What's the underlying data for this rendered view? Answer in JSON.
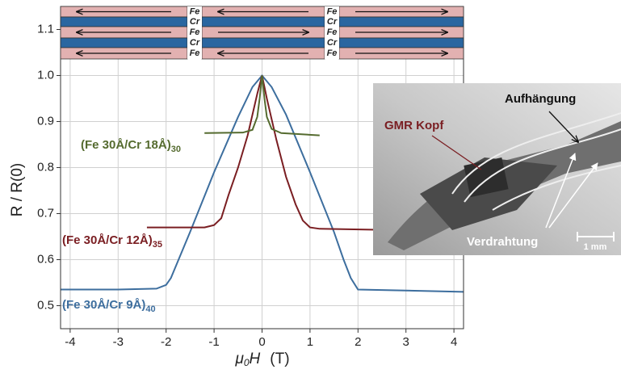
{
  "chart_data": {
    "type": "line",
    "y_label": "R / R(0)",
    "x_label": {
      "symbol": "μ",
      "sub": "0",
      "var": "H",
      "unit": "(T)"
    },
    "xlim": [
      -4.2,
      4.2
    ],
    "xticks": [
      -4,
      -3,
      -2,
      -1,
      0,
      1,
      2,
      3,
      4
    ],
    "ylim": [
      0.45,
      1.15
    ],
    "yticks": [
      0.5,
      0.6,
      0.7,
      0.8,
      0.9,
      {
        "value": 1,
        "label": "1.0"
      },
      1.1
    ],
    "grid": true,
    "series": [
      {
        "name": "(Fe 30Å/Cr 9Å)",
        "subscript": "40",
        "color": "#3d6e9e",
        "x": [
          -4.2,
          -3,
          -2.2,
          -2.0,
          -1.9,
          -1.7,
          -1.5,
          -1.0,
          -0.5,
          -0.2,
          0,
          0.2,
          0.5,
          1.0,
          1.5,
          1.7,
          1.85,
          2.0,
          3,
          4.2
        ],
        "values": [
          0.535,
          0.535,
          0.537,
          0.545,
          0.56,
          0.61,
          0.66,
          0.79,
          0.91,
          0.975,
          1.0,
          0.975,
          0.915,
          0.79,
          0.66,
          0.6,
          0.56,
          0.535,
          0.533,
          0.53
        ]
      },
      {
        "name": "(Fe 30Å/Cr 12Å)",
        "subscript": "35",
        "color": "#7a1e22",
        "x": [
          -2.4,
          -1.2,
          -1.0,
          -0.85,
          -0.7,
          -0.5,
          -0.3,
          -0.1,
          0,
          0.1,
          0.3,
          0.5,
          0.7,
          0.85,
          1.0,
          1.2,
          2.4
        ],
        "values": [
          0.67,
          0.67,
          0.675,
          0.69,
          0.74,
          0.8,
          0.87,
          0.96,
          1.0,
          0.95,
          0.86,
          0.78,
          0.72,
          0.685,
          0.67,
          0.667,
          0.665
        ]
      },
      {
        "name": "(Fe 30Å/Cr 18Å)",
        "subscript": "30",
        "color": "#556b2f",
        "x": [
          -1.2,
          -0.4,
          -0.2,
          -0.1,
          -0.05,
          0,
          0.05,
          0.1,
          0.2,
          0.4,
          1.2
        ],
        "values": [
          0.875,
          0.876,
          0.882,
          0.91,
          0.95,
          1.0,
          0.95,
          0.91,
          0.884,
          0.875,
          0.87
        ]
      }
    ]
  },
  "layers": [
    "Fe",
    "Cr",
    "Fe",
    "Cr",
    "Fe"
  ],
  "inset": {
    "labels": [
      "Aufhängung",
      "GMR Kopf",
      "Verdrahtung"
    ],
    "scale": "1 mm"
  }
}
